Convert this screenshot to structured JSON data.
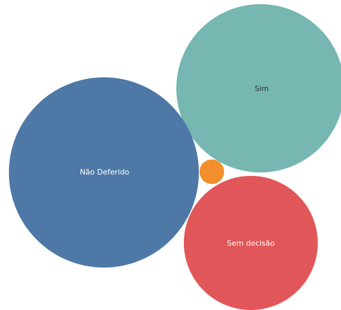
{
  "chart_data": {
    "type": "bubble",
    "title": "",
    "legend": "none",
    "series": [
      {
        "name": "Sim",
        "label": "Sim",
        "color": "#76b7b2",
        "label_color": "#333333",
        "relative_size": 0.98
      },
      {
        "name": "Não Deferido",
        "label": "Não Deferido",
        "color": "#4e79a7",
        "label_color": "#ffffff",
        "relative_size": 1.0
      },
      {
        "name": "Sem decisão",
        "label": "Sem decisão",
        "color": "#e15759",
        "label_color": "#ffffff",
        "relative_size": 0.5
      },
      {
        "name": "",
        "label": "",
        "color": "#f28e2b",
        "label_color": "#ffffff",
        "relative_size": 0.017
      }
    ]
  }
}
